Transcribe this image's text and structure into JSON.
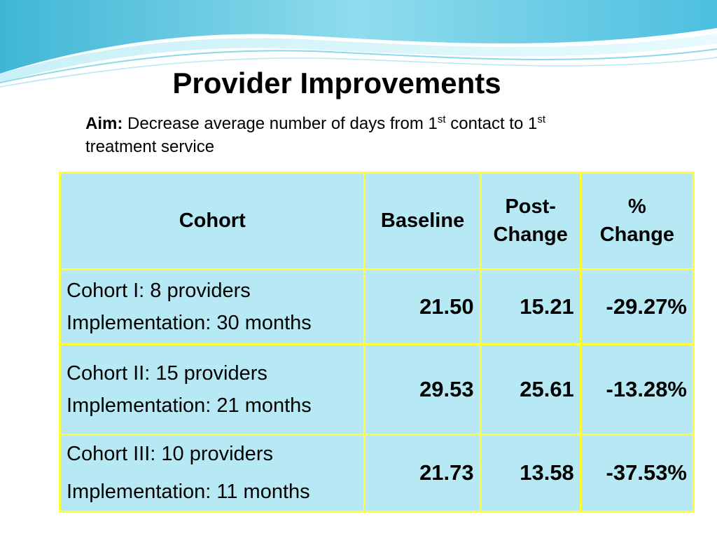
{
  "slide": {
    "title": "Provider Improvements",
    "aim": {
      "label": "Aim:",
      "text_part1": " Decrease average number of days from 1",
      "sup1": "st",
      "text_part2": " contact to 1",
      "sup2": "st",
      "text_part3": " treatment service"
    },
    "accent_colors": {
      "table_fill": "#b6e9f3",
      "table_border": "#ffff33",
      "wave": "#6ccde3"
    }
  },
  "table": {
    "headers": {
      "cohort": "Cohort",
      "baseline": "Baseline",
      "post_change_line1": "Post-",
      "post_change_line2": "Change",
      "pct_change_line1": "%",
      "pct_change_line2": "Change"
    },
    "rows": [
      {
        "cohort_line1": "Cohort I: 8 providers",
        "cohort_line2": "Implementation: 30 months",
        "baseline": "21.50",
        "post_change": "15.21",
        "pct_change": "-29.27%"
      },
      {
        "cohort_line1": "Cohort II: 15 providers",
        "cohort_line2": "Implementation: 21 months",
        "baseline": "29.53",
        "post_change": "25.61",
        "pct_change": "-13.28%"
      },
      {
        "cohort_line1": "Cohort III: 10 providers",
        "cohort_line2": "Implementation: 11 months",
        "baseline": "21.73",
        "post_change": "13.58",
        "pct_change": "-37.53%"
      }
    ]
  }
}
